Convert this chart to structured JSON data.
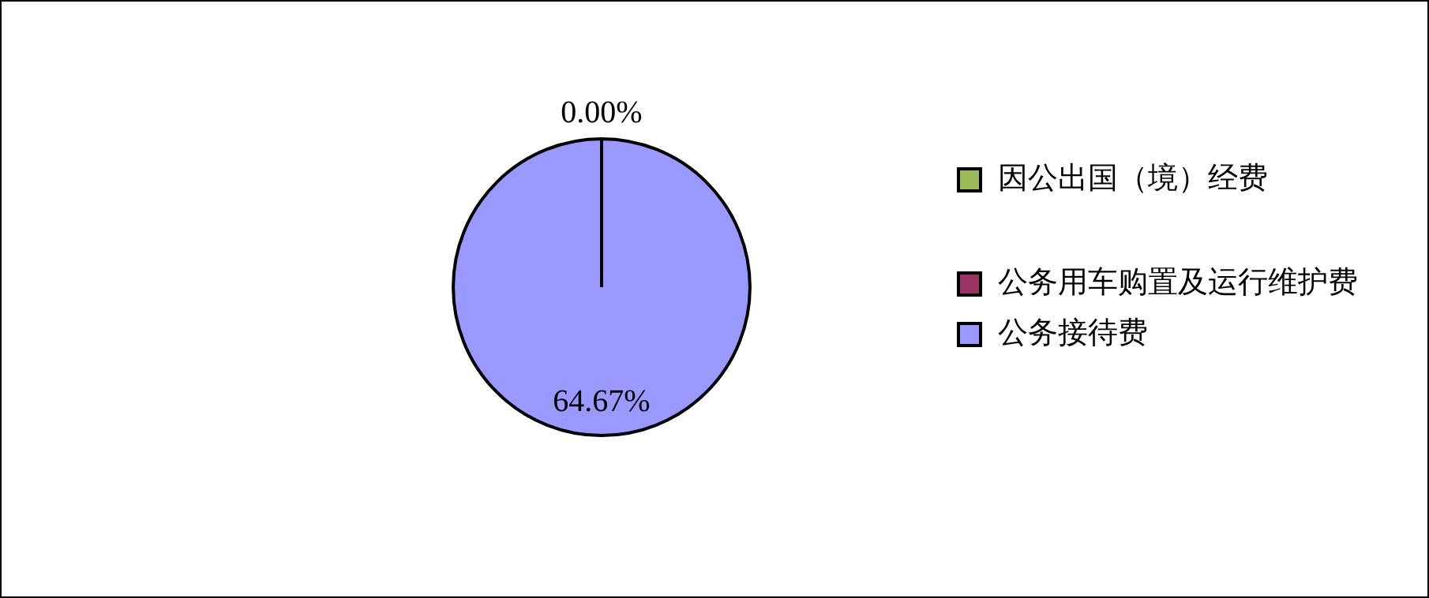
{
  "chart_data": {
    "type": "pie",
    "categories": [
      "因公出国（境）经费",
      "公务用车购置及运行维护费",
      "公务接待费"
    ],
    "values": [
      0,
      0,
      64.67
    ],
    "colors": [
      "#9bbb59",
      "#993366",
      "#9999ff"
    ],
    "value_labels": [
      "0.00%",
      null,
      "64.67%"
    ],
    "legend": "right"
  }
}
